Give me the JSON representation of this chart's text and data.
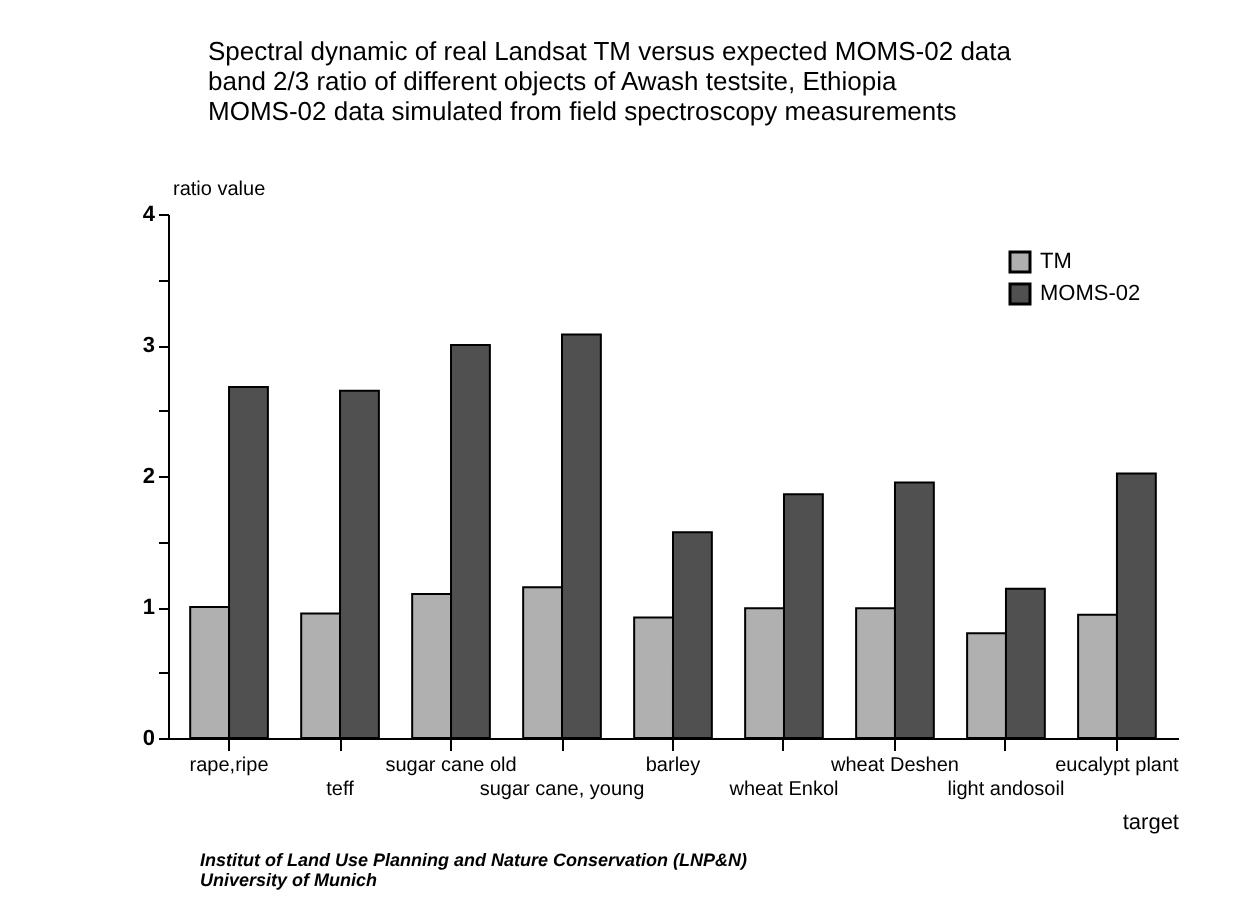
{
  "chart_data": {
    "type": "bar",
    "title": [
      "Spectral dynamic of real Landsat TM versus expected MOMS-02 data",
      "band 2/3 ratio of different objects of Awash testsite, Ethiopia",
      "MOMS-02 data simulated from field spectroscopy measurements"
    ],
    "xlabel": "target",
    "ylabel": "ratio value",
    "categories": [
      "rape,ripe",
      "teff",
      "sugar cane old",
      "sugar cane, young",
      "barley",
      "wheat Enkol",
      "wheat Deshen",
      "light andosoil",
      "eucalypt plant"
    ],
    "series": [
      {
        "name": "TM",
        "color": "#b0b0b0",
        "values": [
          1.0,
          0.95,
          1.1,
          1.15,
          0.92,
          0.99,
          0.99,
          0.8,
          0.94
        ]
      },
      {
        "name": "MOMS-02",
        "color": "#505050",
        "values": [
          2.68,
          2.65,
          3.0,
          3.08,
          1.57,
          1.86,
          1.95,
          1.14,
          2.02
        ]
      }
    ],
    "ylim": [
      0,
      4
    ],
    "yticks": [
      0,
      {
        "value": 0.5,
        "label": null
      },
      1,
      {
        "value": 1.5,
        "label": null
      },
      2,
      {
        "value": 2.5,
        "label": null
      },
      3,
      {
        "value": 3.5,
        "label": null
      },
      4
    ],
    "grid": false,
    "legend": "top right",
    "annotations": [
      "Institut of Land Use Planning and Nature Conservation (LNP&N)",
      "University of Munich"
    ]
  }
}
